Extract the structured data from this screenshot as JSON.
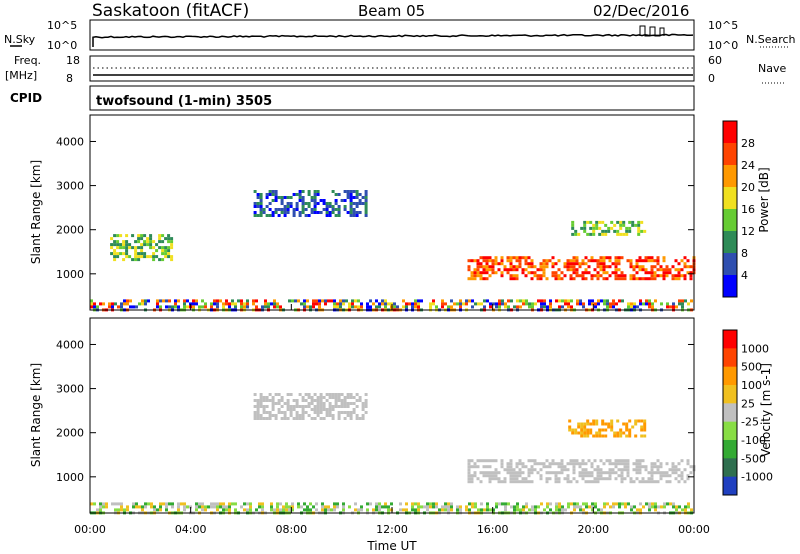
{
  "header": {
    "station": "Saskatoon (fitACF)",
    "beam": "Beam 05",
    "date": "02/Dec/2016"
  },
  "status_panels": {
    "nsky_label": "N.Sky",
    "nsearch_label": "N.Search",
    "freq_label_top": "Freq.",
    "freq_label_units": "[MHz]",
    "nave_label": "Nave",
    "cpid_label": "CPID",
    "cpid_text": "twofsound (1-min) 3505",
    "noise_ticks": [
      "10^5",
      "10^0"
    ],
    "freq_ticks": [
      "18",
      "8"
    ],
    "nave_ticks": [
      "60",
      "0"
    ]
  },
  "chart_data": [
    {
      "type": "heatmap",
      "name": "power",
      "ylabel": "Slant Range [km]",
      "xlabel": "",
      "ylim": [
        180,
        4600
      ],
      "yticks": [
        "4000",
        "3000",
        "2000",
        "1000"
      ],
      "xticks": [
        "00:00",
        "04:00",
        "08:00",
        "12:00",
        "16:00",
        "20:00",
        "00:00"
      ],
      "colorbar": {
        "label": "Power [dB]",
        "ticks": [
          "28",
          "24",
          "20",
          "16",
          "12",
          "8",
          "4"
        ],
        "colors": [
          "#0000ff",
          "#2f4fb0",
          "#2e8b57",
          "#66cc33",
          "#f0e020",
          "#ff9900",
          "#ff4400",
          "#ff0000"
        ]
      },
      "features": [
        {
          "t_start": 0.0,
          "t_end": 24.0,
          "range_start": 200,
          "range_end": 420,
          "level": "mixed"
        },
        {
          "t_start": 15.0,
          "t_end": 24.0,
          "range_start": 900,
          "range_end": 1400,
          "level": "high"
        },
        {
          "t_start": 6.5,
          "t_end": 11.0,
          "range_start": 2300,
          "range_end": 2900,
          "level": "low"
        },
        {
          "t_start": 0.8,
          "t_end": 3.2,
          "range_start": 1300,
          "range_end": 1900,
          "level": "mid"
        },
        {
          "t_start": 19.0,
          "t_end": 22.0,
          "range_start": 1900,
          "range_end": 2200,
          "level": "mid"
        }
      ]
    },
    {
      "type": "heatmap",
      "name": "velocity",
      "ylabel": "Slant Range [km]",
      "xlabel": "Time UT",
      "ylim": [
        180,
        4600
      ],
      "yticks": [
        "4000",
        "3000",
        "2000",
        "1000"
      ],
      "xticks": [
        "00:00",
        "04:00",
        "08:00",
        "12:00",
        "16:00",
        "20:00",
        "00:00"
      ],
      "colorbar": {
        "label": "Velocity [m s-1]",
        "ticks": [
          "1000",
          "500",
          "100",
          "25",
          "-25",
          "-100",
          "-500",
          "-1000"
        ],
        "colors": [
          "#2040c0",
          "#2f6f4f",
          "#33aa33",
          "#88dd44",
          "#c0c0c0",
          "#f0c020",
          "#ff9900",
          "#ff4400",
          "#ff0000"
        ]
      },
      "features": [
        {
          "t_start": 0.0,
          "t_end": 24.0,
          "range_start": 200,
          "range_end": 420,
          "level": "mixed"
        },
        {
          "t_start": 15.0,
          "t_end": 24.0,
          "range_start": 900,
          "range_end": 1400,
          "level": "grey"
        },
        {
          "t_start": 6.5,
          "t_end": 11.0,
          "range_start": 2300,
          "range_end": 2900,
          "level": "grey"
        },
        {
          "t_start": 19.0,
          "t_end": 22.0,
          "range_start": 1900,
          "range_end": 2300,
          "level": "orange"
        }
      ]
    }
  ]
}
